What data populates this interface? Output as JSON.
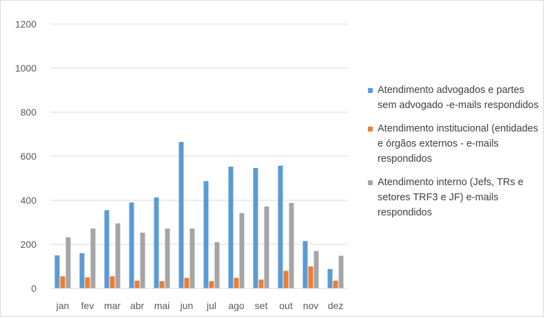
{
  "chart_data": {
    "type": "bar",
    "categories": [
      "jan",
      "fev",
      "mar",
      "abr",
      "mai",
      "jun",
      "jul",
      "ago",
      "set",
      "out",
      "nov",
      "dez"
    ],
    "series": [
      {
        "name": "Atendimento advogados e partes sem advogado -e-mails respondidos",
        "color": "#5b9bd5",
        "values": [
          150,
          160,
          355,
          390,
          413,
          665,
          487,
          553,
          547,
          557,
          215,
          88
        ]
      },
      {
        "name": "Atendimento institucional (entidades e órgãos externos - e-mails respondidos",
        "color": "#ed7d31",
        "values": [
          55,
          50,
          55,
          35,
          33,
          48,
          33,
          48,
          40,
          80,
          100,
          35
        ]
      },
      {
        "name": "Atendimento interno (Jefs, TRs e setores TRF3 e JF) e-mails respondidos",
        "color": "#a5a5a5",
        "values": [
          232,
          272,
          295,
          253,
          272,
          272,
          210,
          342,
          372,
          388,
          170,
          148
        ]
      }
    ],
    "yticks": [
      "0",
      "200",
      "400",
      "600",
      "800",
      "1000",
      "1200"
    ],
    "ylim": [
      0,
      1200
    ],
    "grid": true,
    "legend_position": "right"
  }
}
